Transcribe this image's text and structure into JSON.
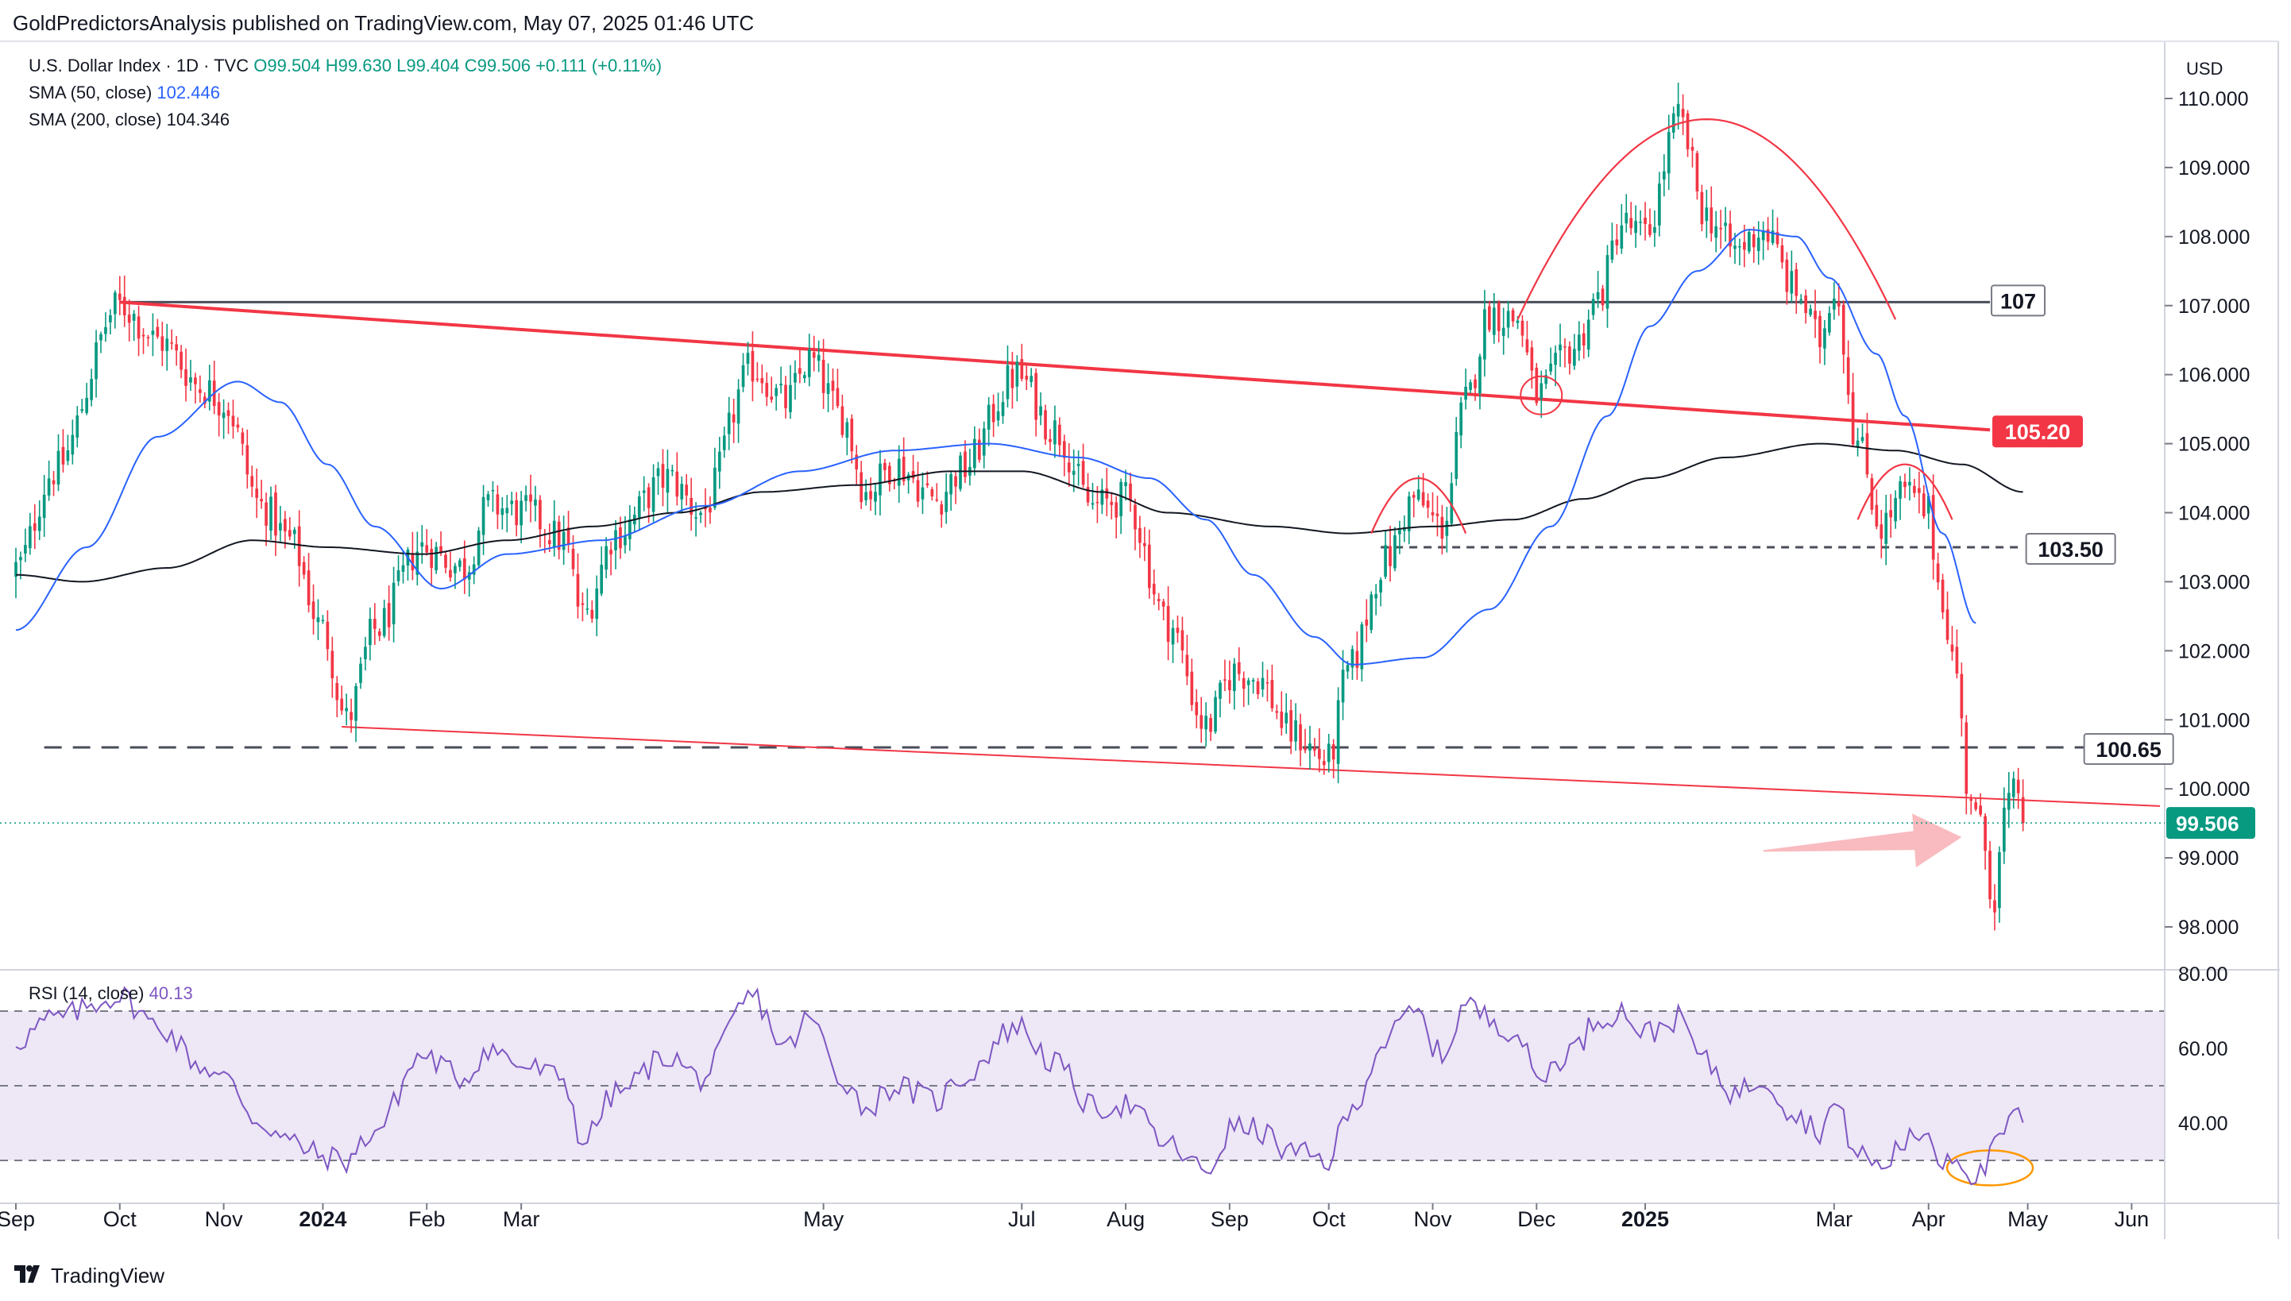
{
  "publisher": "GoldPredictorsAnalysis published on TradingView.com, May 07, 2025 01:46 UTC",
  "brand": {
    "logo_icon": "tradingview-logo-icon",
    "label": "TradingView"
  },
  "legend": {
    "symbol": "U.S. Dollar Index · 1D · TVC",
    "open": "O99.504",
    "high": "H99.630",
    "low": "L99.404",
    "close": "C99.506",
    "change": "+0.111 (+0.11%)",
    "sma50_label": "SMA (50, close)",
    "sma50_value": "102.446",
    "sma200_label": "SMA (200, close)",
    "sma200_value": "104.346",
    "rsi_label": "RSI (14, close)",
    "rsi_value": "40.13"
  },
  "currency": "USD",
  "colors": {
    "up": "#089981",
    "down": "#f23645",
    "sma50": "#2962ff",
    "sma200": "#131722",
    "trend": "#f23645",
    "rsi": "#7e57c2",
    "rsi_band": "#ede7f6",
    "annotation_red": "#f23645",
    "annotation_orange": "#ff9800",
    "arrow": "#f8b4b8",
    "last_price": "#089981"
  },
  "chart_data": [
    {
      "type": "candlestick",
      "title": "U.S. Dollar Index · 1D · TVC",
      "x_ticks": [
        "Sep",
        "Oct",
        "Nov",
        "2024",
        "Feb",
        "Mar",
        "May",
        "Jul",
        "Aug",
        "Sep",
        "Oct",
        "Nov",
        "Dec",
        "2025",
        "Mar",
        "Apr",
        "May",
        "Jun"
      ],
      "x_tick_positions": [
        0,
        22,
        44,
        65,
        87,
        107,
        171,
        213,
        235,
        257,
        278,
        300,
        322,
        345,
        385,
        405,
        426,
        448
      ],
      "y_ticks": [
        "98.000",
        "99.000",
        "100.000",
        "101.000",
        "102.000",
        "103.000",
        "104.000",
        "105.000",
        "106.000",
        "107.000",
        "108.000",
        "109.000",
        "110.000"
      ],
      "ylim": [
        97.4,
        110.2
      ],
      "x_range": [
        0,
        455
      ],
      "last_bar_index": 425,
      "last_price": 99.506,
      "last_price_label": "99.506",
      "close_keypoints": [
        [
          0,
          103.2
        ],
        [
          8,
          104.6
        ],
        [
          22,
          107.0
        ],
        [
          30,
          106.5
        ],
        [
          40,
          105.8
        ],
        [
          44,
          105.6
        ],
        [
          52,
          104.1
        ],
        [
          58,
          103.6
        ],
        [
          65,
          102.3
        ],
        [
          70,
          101.0
        ],
        [
          76,
          102.3
        ],
        [
          86,
          103.5
        ],
        [
          95,
          103.2
        ],
        [
          100,
          104.1
        ],
        [
          108,
          104.0
        ],
        [
          116,
          103.6
        ],
        [
          120,
          102.5
        ],
        [
          127,
          103.7
        ],
        [
          138,
          104.5
        ],
        [
          145,
          104.0
        ],
        [
          156,
          106.1
        ],
        [
          163,
          105.6
        ],
        [
          168,
          106.2
        ],
        [
          175,
          105.4
        ],
        [
          180,
          104.3
        ],
        [
          186,
          104.7
        ],
        [
          195,
          104.2
        ],
        [
          200,
          104.6
        ],
        [
          212,
          106.0
        ],
        [
          220,
          105.2
        ],
        [
          228,
          104.1
        ],
        [
          235,
          104.2
        ],
        [
          244,
          102.4
        ],
        [
          252,
          100.9
        ],
        [
          258,
          101.7
        ],
        [
          263,
          101.6
        ],
        [
          270,
          100.8
        ],
        [
          278,
          100.4
        ],
        [
          282,
          101.7
        ],
        [
          290,
          103.3
        ],
        [
          296,
          104.2
        ],
        [
          302,
          103.8
        ],
        [
          307,
          105.6
        ],
        [
          312,
          106.9
        ],
        [
          318,
          106.8
        ],
        [
          322,
          105.7
        ],
        [
          330,
          106.4
        ],
        [
          335,
          107.1
        ],
        [
          340,
          108.2
        ],
        [
          345,
          108.0
        ],
        [
          352,
          109.7
        ],
        [
          358,
          108.3
        ],
        [
          364,
          107.8
        ],
        [
          370,
          108.1
        ],
        [
          377,
          107.2
        ],
        [
          382,
          106.5
        ],
        [
          385,
          107.3
        ],
        [
          390,
          105.0
        ],
        [
          395,
          103.8
        ],
        [
          400,
          104.3
        ],
        [
          405,
          104.0
        ],
        [
          407,
          103.0
        ],
        [
          411,
          101.7
        ],
        [
          413,
          100.1
        ],
        [
          416,
          99.4
        ],
        [
          419,
          98.4
        ],
        [
          421,
          99.6
        ],
        [
          424,
          100.0
        ],
        [
          425,
          99.506
        ]
      ],
      "sma50_keypoints": [
        [
          0,
          102.3
        ],
        [
          15,
          103.5
        ],
        [
          30,
          105.1
        ],
        [
          47,
          105.9
        ],
        [
          56,
          105.6
        ],
        [
          66,
          104.7
        ],
        [
          76,
          103.8
        ],
        [
          90,
          102.9
        ],
        [
          104,
          103.4
        ],
        [
          124,
          103.6
        ],
        [
          146,
          104.1
        ],
        [
          166,
          104.6
        ],
        [
          186,
          104.9
        ],
        [
          206,
          105.0
        ],
        [
          225,
          104.8
        ],
        [
          240,
          104.5
        ],
        [
          252,
          103.9
        ],
        [
          262,
          103.1
        ],
        [
          275,
          102.2
        ],
        [
          283,
          101.8
        ],
        [
          298,
          101.9
        ],
        [
          312,
          102.6
        ],
        [
          325,
          103.8
        ],
        [
          337,
          105.4
        ],
        [
          346,
          106.7
        ],
        [
          356,
          107.5
        ],
        [
          367,
          108.1
        ],
        [
          377,
          108.0
        ],
        [
          384,
          107.4
        ],
        [
          394,
          106.3
        ],
        [
          400,
          105.4
        ],
        [
          408,
          103.7
        ],
        [
          415,
          102.4
        ]
      ],
      "sma200_keypoints": [
        [
          0,
          103.1
        ],
        [
          14,
          103.0
        ],
        [
          32,
          103.2
        ],
        [
          50,
          103.6
        ],
        [
          66,
          103.5
        ],
        [
          86,
          103.4
        ],
        [
          104,
          103.6
        ],
        [
          122,
          103.8
        ],
        [
          140,
          104.0
        ],
        [
          158,
          104.3
        ],
        [
          178,
          104.4
        ],
        [
          198,
          104.6
        ],
        [
          213,
          104.6
        ],
        [
          230,
          104.3
        ],
        [
          244,
          104.0
        ],
        [
          266,
          103.8
        ],
        [
          282,
          103.7
        ],
        [
          300,
          103.8
        ],
        [
          317,
          103.9
        ],
        [
          332,
          104.2
        ],
        [
          346,
          104.5
        ],
        [
          362,
          104.8
        ],
        [
          382,
          105.0
        ],
        [
          398,
          104.9
        ],
        [
          412,
          104.7
        ],
        [
          425,
          104.3
        ]
      ],
      "rsi": {
        "y_ticks": [
          "40.00",
          "60.00",
          "80.00"
        ],
        "ylim": [
          20,
          82
        ],
        "bands": [
          30,
          50,
          70
        ],
        "keypoints": [
          [
            0,
            62
          ],
          [
            8,
            68
          ],
          [
            22,
            74
          ],
          [
            30,
            66
          ],
          [
            40,
            55
          ],
          [
            44,
            52
          ],
          [
            52,
            40
          ],
          [
            58,
            35
          ],
          [
            65,
            31
          ],
          [
            70,
            30
          ],
          [
            76,
            38
          ],
          [
            86,
            58
          ],
          [
            95,
            52
          ],
          [
            100,
            60
          ],
          [
            108,
            55
          ],
          [
            116,
            52
          ],
          [
            120,
            35
          ],
          [
            127,
            48
          ],
          [
            138,
            58
          ],
          [
            145,
            52
          ],
          [
            156,
            74
          ],
          [
            163,
            60
          ],
          [
            168,
            68
          ],
          [
            175,
            52
          ],
          [
            180,
            44
          ],
          [
            186,
            50
          ],
          [
            195,
            46
          ],
          [
            200,
            52
          ],
          [
            212,
            66
          ],
          [
            220,
            56
          ],
          [
            228,
            44
          ],
          [
            235,
            45
          ],
          [
            244,
            34
          ],
          [
            252,
            27
          ],
          [
            258,
            39
          ],
          [
            263,
            38
          ],
          [
            270,
            32
          ],
          [
            278,
            30
          ],
          [
            282,
            42
          ],
          [
            290,
            62
          ],
          [
            296,
            70
          ],
          [
            302,
            58
          ],
          [
            307,
            72
          ],
          [
            312,
            68
          ],
          [
            318,
            64
          ],
          [
            322,
            52
          ],
          [
            330,
            60
          ],
          [
            335,
            68
          ],
          [
            340,
            70
          ],
          [
            345,
            64
          ],
          [
            352,
            68
          ],
          [
            358,
            56
          ],
          [
            364,
            48
          ],
          [
            370,
            52
          ],
          [
            377,
            42
          ],
          [
            382,
            38
          ],
          [
            385,
            45
          ],
          [
            390,
            32
          ],
          [
            395,
            28
          ],
          [
            400,
            35
          ],
          [
            405,
            38
          ],
          [
            407,
            30
          ],
          [
            411,
            32
          ],
          [
            413,
            27
          ],
          [
            416,
            26
          ],
          [
            419,
            33
          ],
          [
            421,
            38
          ],
          [
            424,
            43
          ],
          [
            425,
            40.13
          ]
        ]
      },
      "annotations": {
        "horizontal_lines": [
          {
            "value": 107.05,
            "label": "107",
            "style": "solid",
            "color": "#4a4e5a",
            "from": 22,
            "to": 418
          },
          {
            "value": 103.5,
            "label": "103.50",
            "style": "dashed",
            "color": "#4a4e5a",
            "from": 289,
            "to": 425
          },
          {
            "value": 100.6,
            "label": "100.65",
            "style": "dashed",
            "color": "#4a4e5a",
            "from": 6,
            "to": 443
          }
        ],
        "trendlines": [
          {
            "from": [
              22,
              107.05
            ],
            "to": [
              418,
              105.2
            ],
            "color": "#f23645",
            "width": 4,
            "label": "105.20"
          },
          {
            "from": [
              69,
              100.9
            ],
            "to": [
              454,
              99.75
            ],
            "color": "#f23645",
            "width": 2
          }
        ],
        "arcs": [
          {
            "center_x": 358,
            "apex": 109.7,
            "half_width": 40,
            "drop": 2.9,
            "color": "#f23645"
          },
          {
            "center_x": 297,
            "apex": 104.5,
            "half_width": 10,
            "drop": 0.8,
            "color": "#f23645"
          },
          {
            "center_x": 400,
            "apex": 104.7,
            "half_width": 10,
            "drop": 0.8,
            "color": "#f23645"
          }
        ],
        "circles": [
          {
            "pane": "price",
            "x": 323,
            "y": 105.7,
            "color": "#f23645"
          },
          {
            "pane": "rsi",
            "x": 418,
            "y": 28,
            "color": "#ff9800"
          }
        ],
        "arrow": {
          "from": [
            370,
            99.1
          ],
          "to": [
            412,
            99.3
          ],
          "color": "#f8b4b8"
        }
      }
    }
  ]
}
